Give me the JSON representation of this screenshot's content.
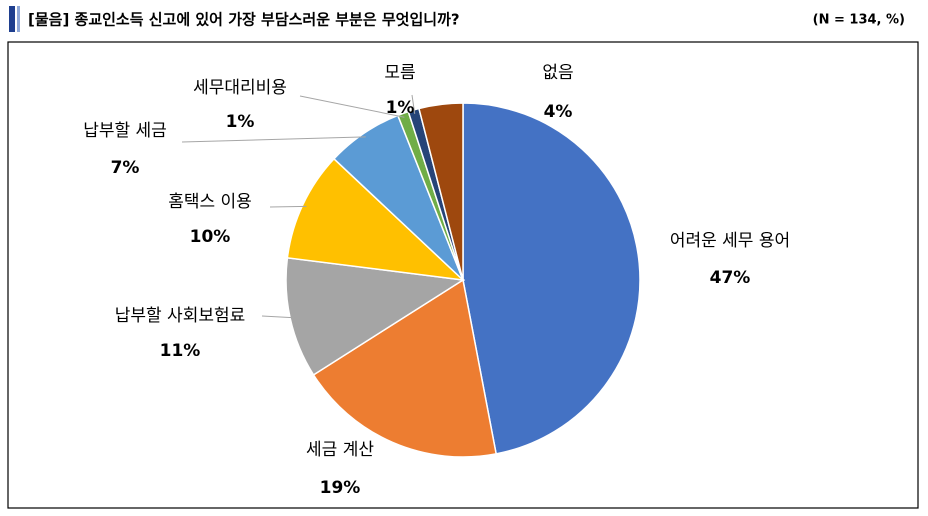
{
  "chart_data": {
    "type": "pie",
    "title": "[물음] 종교인소득 신고에 있어 가장 부담스러운 부분은 무엇입니까?",
    "note": "(N = 134, %)",
    "categories": [
      "어려운 세무 용어",
      "세금 계산",
      "납부할 사회보험료",
      "홈택스 이용",
      "납부할 세금",
      "세무대리비용",
      "모름",
      "없음"
    ],
    "values": [
      47,
      19,
      11,
      10,
      7,
      1,
      1,
      4
    ],
    "value_labels": [
      "47%",
      "19%",
      "11%",
      "10%",
      "7%",
      "1%",
      "1%",
      "4%"
    ],
    "colors": [
      "#4472c4",
      "#ed7d31",
      "#a5a5a5",
      "#ffc000",
      "#5b9bd5",
      "#70ad47",
      "#264478",
      "#9e480e"
    ]
  }
}
